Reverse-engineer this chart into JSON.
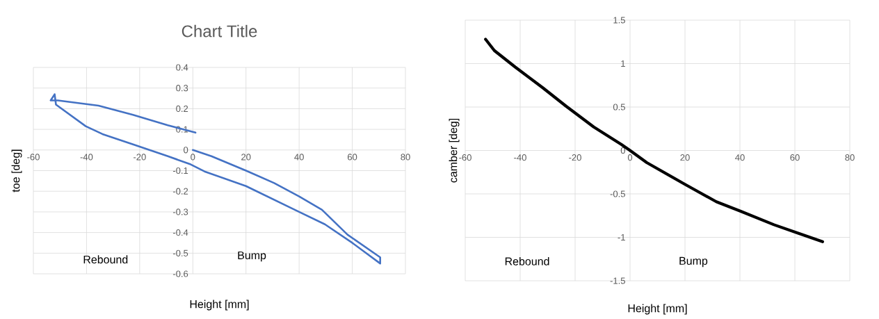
{
  "chart_data": [
    {
      "type": "line",
      "title": "Chart Title",
      "xlabel": "Height [mm]",
      "ylabel": "toe [deg]",
      "x": [
        0,
        7,
        20,
        30.6,
        40,
        48.6,
        58.2,
        70.5,
        70.5,
        60,
        49.7,
        40,
        20,
        4.4,
        -0.8,
        -9.4,
        -22.5,
        -34,
        -40.3,
        -51.5,
        -52,
        -53.5,
        -50.8,
        -35.5,
        -22.5,
        -9.4,
        1
      ],
      "values": [
        0,
        -0.03,
        -0.1,
        -0.16,
        -0.225,
        -0.29,
        -0.41,
        -0.52,
        -0.55,
        -0.45,
        -0.36,
        -0.3,
        -0.175,
        -0.104,
        -0.07,
        -0.03,
        0.027,
        0.077,
        0.115,
        0.22,
        0.27,
        0.24,
        0.24,
        0.215,
        0.17,
        0.12,
        0.084
      ],
      "color": "#4472c4",
      "line_style": "solid",
      "grid": true,
      "xlim": [
        -60,
        80
      ],
      "ylim": [
        -0.6,
        0.4
      ],
      "xticks": [
        -60,
        -40,
        -20,
        0,
        20,
        40,
        60,
        80
      ],
      "yticks": [
        -0.6,
        -0.5,
        -0.4,
        -0.3,
        -0.2,
        -0.1,
        0,
        0.1,
        0.2,
        0.3,
        0.4
      ],
      "annotations": [
        "Rebound",
        "Bump"
      ]
    },
    {
      "type": "line",
      "xlabel": "Height [mm]",
      "ylabel": "camber [deg]",
      "x": [
        -52.6,
        -49.4,
        -41.8,
        -31.7,
        -23.3,
        -13.2,
        -3.2,
        0,
        6.1,
        20,
        31.4,
        40.3,
        52.4,
        61,
        70.1
      ],
      "values": [
        1.28,
        1.15,
        0.96,
        0.72,
        0.51,
        0.27,
        0.07,
        0,
        -0.14,
        -0.39,
        -0.59,
        -0.7,
        -0.855,
        -0.95,
        -1.05
      ],
      "color": "#000000",
      "line_style": "solid",
      "grid": true,
      "xlim": [
        -60,
        80
      ],
      "ylim": [
        -1.5,
        1.5
      ],
      "xticks": [
        -60,
        -40,
        -20,
        0,
        20,
        40,
        60,
        80
      ],
      "yticks": [
        -1.5,
        -1,
        -0.5,
        0,
        0.5,
        1,
        1.5
      ],
      "annotations": [
        "Rebound",
        "Bump"
      ]
    }
  ]
}
